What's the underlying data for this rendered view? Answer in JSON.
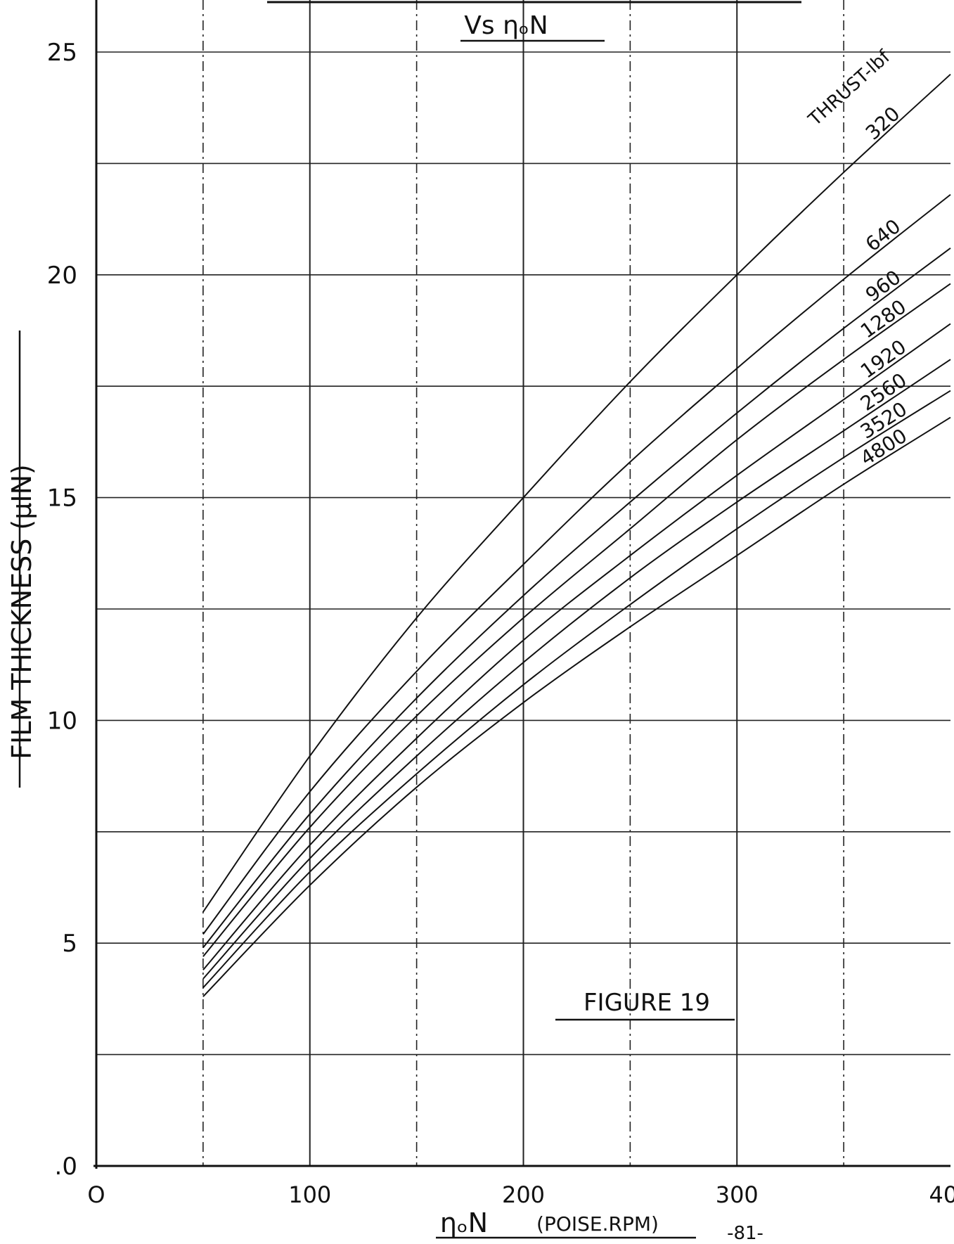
{
  "chart_data": {
    "type": "line",
    "title_line": "Vs ηₒN",
    "figure_label": "FIGURE 19",
    "ylabel": "FILM THICKNESS (μIN)",
    "xlabel": "ηₒN",
    "xlabel_units": "(POISE.RPM)",
    "page_number": "-81-",
    "legend_title": "THRUST-lbf",
    "xlim": [
      0,
      400
    ],
    "ylim": [
      0,
      25
    ],
    "x_ticks": [
      {
        "value": 0,
        "label": "O"
      },
      {
        "value": 100,
        "label": "100"
      },
      {
        "value": 200,
        "label": "200"
      },
      {
        "value": 300,
        "label": "300"
      },
      {
        "value": 400,
        "label": "400"
      }
    ],
    "y_ticks": [
      {
        "value": 0,
        "label": ".0"
      },
      {
        "value": 5,
        "label": "5"
      },
      {
        "value": 10,
        "label": "10"
      },
      {
        "value": 15,
        "label": "15"
      },
      {
        "value": 20,
        "label": "20"
      },
      {
        "value": 25,
        "label": "25"
      }
    ],
    "grid": true,
    "x": [
      50,
      100,
      150,
      200,
      250,
      300,
      350,
      400
    ],
    "series": [
      {
        "name": "320",
        "values": [
          5.7,
          9.2,
          12.3,
          15.0,
          17.6,
          20.0,
          22.3,
          24.5
        ]
      },
      {
        "name": "640",
        "values": [
          5.2,
          8.4,
          11.1,
          13.5,
          15.8,
          17.9,
          19.9,
          21.8
        ]
      },
      {
        "name": "960",
        "values": [
          4.9,
          7.9,
          10.5,
          12.8,
          14.9,
          16.9,
          18.8,
          20.6
        ]
      },
      {
        "name": "1280",
        "values": [
          4.7,
          7.6,
          10.1,
          12.3,
          14.3,
          16.3,
          18.1,
          19.8
        ]
      },
      {
        "name": "1920",
        "values": [
          4.4,
          7.2,
          9.6,
          11.8,
          13.7,
          15.5,
          17.2,
          18.9
        ]
      },
      {
        "name": "2560",
        "values": [
          4.2,
          6.9,
          9.2,
          11.3,
          13.2,
          14.9,
          16.5,
          18.1
        ]
      },
      {
        "name": "3520",
        "values": [
          4.0,
          6.6,
          8.8,
          10.8,
          12.6,
          14.3,
          15.9,
          17.4
        ]
      },
      {
        "name": "4800",
        "values": [
          3.8,
          6.3,
          8.5,
          10.4,
          12.1,
          13.7,
          15.3,
          16.8
        ]
      }
    ]
  }
}
